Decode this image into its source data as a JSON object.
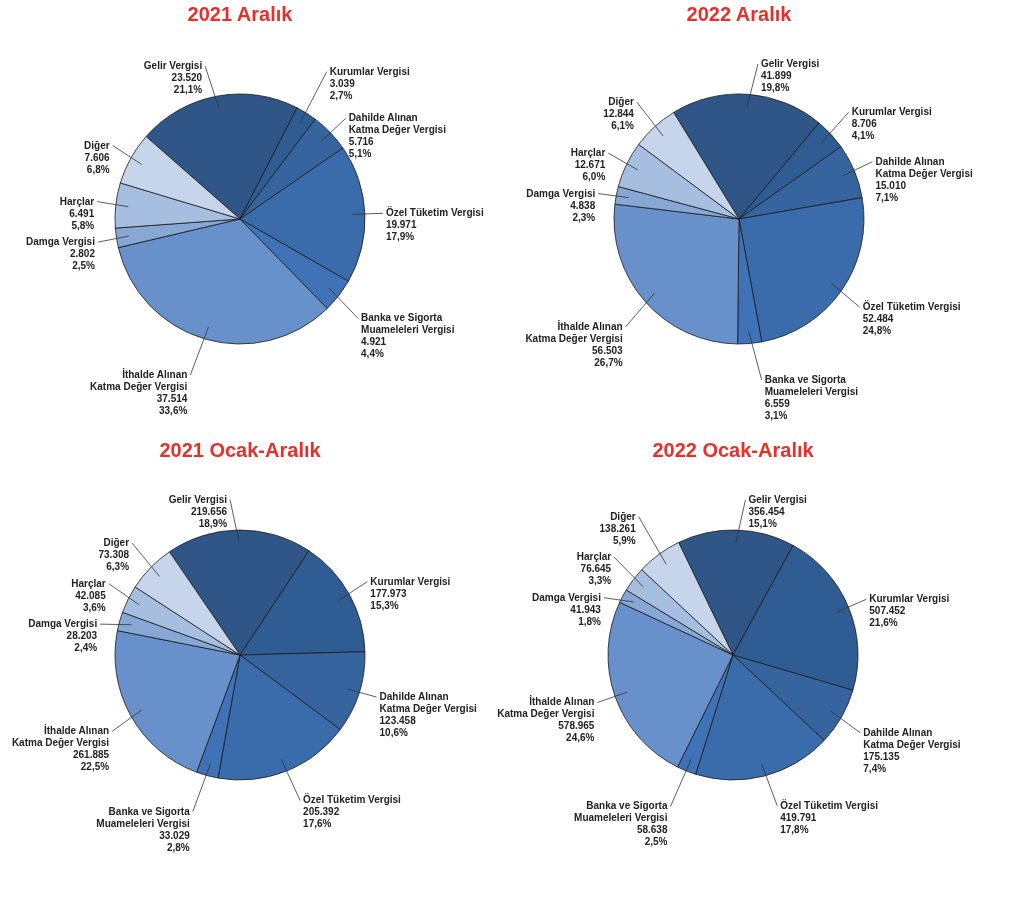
{
  "chart_data": [
    {
      "type": "pie",
      "title": "2021 Aralık",
      "categories": [
        "Gelir Vergisi",
        "Kurumlar Vergisi",
        "Dahilde Alınan\nKatma Değer Vergisi",
        "Özel Tüketim Vergisi",
        "Banka ve Sigorta\nMuameleleri Vergisi",
        "İthalde Alınan\nKatma Değer Vergisi",
        "Damga Vergisi",
        "Harçlar",
        "Diğer"
      ],
      "values": [
        23520,
        3039,
        5716,
        19971,
        4921,
        37514,
        2802,
        6491,
        7606
      ],
      "value_labels": [
        "23.520\n21,1%",
        "3.039\n2,7%",
        "5.716\n5,1%",
        "19.971\n17,9%",
        "4.921\n4,4%",
        "37.514\n33,6%",
        "2.802\n2,5%",
        "6.491\n5,8%",
        "7.606\n6,8%"
      ],
      "colors": [
        "#2f5687",
        "#2f5c93",
        "#35649f",
        "#3a6cac",
        "#3f72b6",
        "#6890cb",
        "#87a7d5",
        "#a6bedf",
        "#c6d5eb"
      ],
      "legend": false
    },
    {
      "type": "pie",
      "title": "2022 Aralık",
      "categories": [
        "Gelir Vergisi",
        "Kurumlar Vergisi",
        "Dahilde Alınan\nKatma Değer Vergisi",
        "Özel Tüketim Vergisi",
        "Banka ve Sigorta\nMuameleleri Vergisi",
        "İthalde Alınan\nKatma Değer Vergisi",
        "Damga Vergisi",
        "Harçlar",
        "Diğer"
      ],
      "values": [
        41899,
        8706,
        15010,
        52484,
        6559,
        56503,
        4838,
        12671,
        12844
      ],
      "value_labels": [
        "41.899\n19,8%",
        "8.706\n4,1%",
        "15.010\n7,1%",
        "52.484\n24,8%",
        "6.559\n3,1%",
        "56.503\n26,7%",
        "4.838\n2,3%",
        "12.671\n6,0%",
        "12.844\n6,1%"
      ],
      "colors": [
        "#2f5687",
        "#2f5c93",
        "#35649f",
        "#3a6cac",
        "#3f72b6",
        "#6890cb",
        "#87a7d5",
        "#a6bedf",
        "#c6d5eb"
      ],
      "legend": false
    },
    {
      "type": "pie",
      "title": "2021 Ocak-Aralık",
      "categories": [
        "Gelir Vergisi",
        "Kurumlar Vergisi",
        "Dahilde Alınan\nKatma Değer Vergisi",
        "Özel Tüketim Vergisi",
        "Banka ve Sigorta\nMuameleleri Vergisi",
        "İthalde Alınan\nKatma Değer Vergisi",
        "Damga Vergisi",
        "Harçlar",
        "Diğer"
      ],
      "values": [
        219656,
        177973,
        123458,
        205392,
        33029,
        261885,
        28203,
        42085,
        73308
      ],
      "value_labels": [
        "219.656\n18,9%",
        "177.973\n15,3%",
        "123.458\n10,6%",
        "205.392\n17,6%",
        "33.029\n2,8%",
        "261.885\n22,5%",
        "28.203\n2,4%",
        "42.085\n3,6%",
        "73.308\n6,3%"
      ],
      "colors": [
        "#2f5687",
        "#2f5c93",
        "#35649f",
        "#3a6cac",
        "#3f72b6",
        "#6890cb",
        "#87a7d5",
        "#a6bedf",
        "#c6d5eb"
      ],
      "legend": false
    },
    {
      "type": "pie",
      "title": "2022 Ocak-Aralık",
      "categories": [
        "Gelir Vergisi",
        "Kurumlar Vergisi",
        "Dahilde Alınan\nKatma Değer Vergisi",
        "Özel Tüketim Vergisi",
        "Banka ve Sigorta\nMuameleleri Vergisi",
        "İthalde Alınan\nKatma Değer Vergisi",
        "Damga Vergisi",
        "Harçlar",
        "Diğer"
      ],
      "values": [
        356454,
        507452,
        175135,
        419791,
        58638,
        578965,
        41943,
        76645,
        138261
      ],
      "value_labels": [
        "356.454\n15,1%",
        "507.452\n21,6%",
        "175.135\n7,4%",
        "419.791\n17,8%",
        "58.638\n2,5%",
        "578.965\n24,6%",
        "41.943\n1,8%",
        "76.645\n3,3%",
        "138.261\n5,9%"
      ],
      "colors": [
        "#2f5687",
        "#2f5c93",
        "#35649f",
        "#3a6cac",
        "#3f72b6",
        "#6890cb",
        "#87a7d5",
        "#a6bedf",
        "#c6d5eb"
      ],
      "legend": false
    }
  ]
}
